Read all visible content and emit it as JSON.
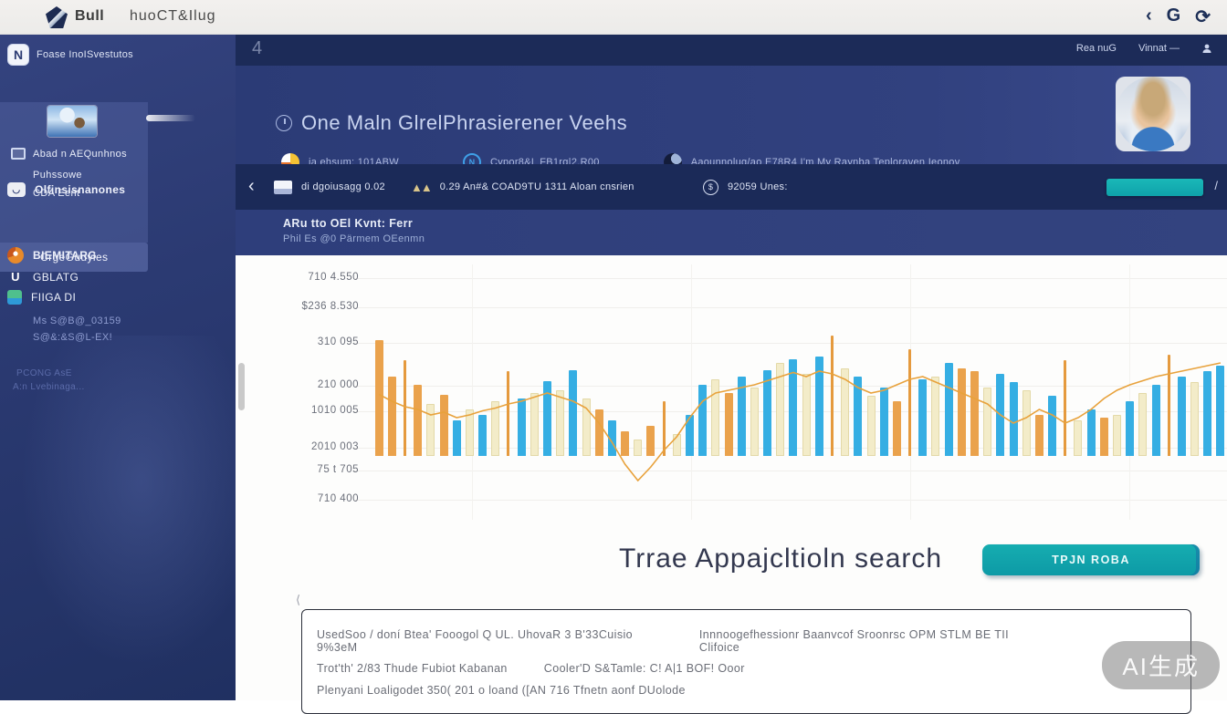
{
  "browser": {
    "logo_text": "Bull",
    "tab_text": "huoCT&Ilug",
    "back_icon": "‹",
    "search_icon": "G",
    "refresh_icon": "⟳"
  },
  "sidebar": {
    "brand": {
      "initial": "N",
      "label": "Foase InoISvestutos"
    },
    "panel_items": [
      {
        "label": "Abad n AEQunhnos"
      },
      {
        "label": "Puhssowe"
      },
      {
        "label": "CDA Eent"
      }
    ],
    "items": [
      {
        "label": "Olfinsisnanones"
      },
      {
        "label": "CrgeGuuyles"
      },
      {
        "label": "BIEMITARG"
      },
      {
        "label": "GBLATG"
      },
      {
        "label": "FIIGA DI"
      }
    ],
    "meta": [
      {
        "label": "Ms S@B@_03159"
      },
      {
        "label": "S@&:&S@L-EX!"
      }
    ],
    "footer": [
      {
        "label": "PCONG AsE"
      },
      {
        "label": "A:n Lvebinaga..."
      }
    ]
  },
  "topstrip": {
    "glyph": "4",
    "links": [
      {
        "label": "Rea nuG"
      },
      {
        "label": "Vinnat —"
      }
    ]
  },
  "header": {
    "title": "One Maln GlrelPhrasierener Veehs",
    "stats": [
      {
        "label": "ia ehsum: 101ABW"
      },
      {
        "label": "Cypor8&L FB1rg|2.R00"
      },
      {
        "label": "Aaounnolug/ao E78R4 I'm My Raynba Teploraven Ieonov"
      }
    ]
  },
  "metrics": {
    "back_icon": "‹",
    "items": [
      {
        "label": "di dgoiusagg 0.02"
      },
      {
        "label": "0.29 An#& COAD9TU 1311 Aloan cnsrien"
      },
      {
        "label": "92059 Unes:"
      }
    ],
    "action_label": "",
    "slash": "/",
    "accent_color": "#14b0b4"
  },
  "chart_header": {
    "title": "ARu tto OEl Kvnt: Ferr",
    "subtitle": "Phil Es @0 Pärmem  OEenmn"
  },
  "chart_data": {
    "type": "bar",
    "title": "",
    "xlabel": "",
    "ylabel": "",
    "legend": [],
    "grid": true,
    "y_ticks": [
      "710 4.550",
      "$236 8.530",
      "310 095",
      "210 000",
      "1010 005",
      "2010 003",
      "75 t 705",
      "710 400"
    ],
    "bar_colors": {
      "b": "#35aee3",
      "c": "#f3ecc9",
      "o": "#eaa24c",
      "s": "#e59a3e"
    },
    "line_color": "#e8a23c",
    "bars": [
      [
        "o",
        85
      ],
      [
        "o",
        58
      ],
      [
        "s",
        70
      ],
      [
        "o",
        52
      ],
      [
        "c",
        38
      ],
      [
        "o",
        45
      ],
      [
        "b",
        26
      ],
      [
        "c",
        34
      ],
      [
        "b",
        30
      ],
      [
        "c",
        40
      ],
      [
        "s",
        62
      ],
      [
        "b",
        42
      ],
      [
        "c",
        46
      ],
      [
        "b",
        55
      ],
      [
        "c",
        48
      ],
      [
        "b",
        63
      ],
      [
        "c",
        42
      ],
      [
        "o",
        34
      ],
      [
        "b",
        26
      ],
      [
        "o",
        18
      ],
      [
        "c",
        12
      ],
      [
        "o",
        22
      ],
      [
        "s",
        40
      ],
      [
        "c",
        16
      ],
      [
        "b",
        30
      ],
      [
        "b",
        52
      ],
      [
        "c",
        56
      ],
      [
        "o",
        46
      ],
      [
        "b",
        58
      ],
      [
        "c",
        50
      ],
      [
        "b",
        63
      ],
      [
        "c",
        68
      ],
      [
        "b",
        71
      ],
      [
        "c",
        60
      ],
      [
        "b",
        73
      ],
      [
        "s",
        88
      ],
      [
        "c",
        64
      ],
      [
        "b",
        58
      ],
      [
        "c",
        44
      ],
      [
        "b",
        50
      ],
      [
        "o",
        40
      ],
      [
        "s",
        78
      ],
      [
        "b",
        56
      ],
      [
        "c",
        58
      ],
      [
        "b",
        68
      ],
      [
        "o",
        64
      ],
      [
        "o",
        62
      ],
      [
        "c",
        50
      ],
      [
        "b",
        60
      ],
      [
        "b",
        54
      ],
      [
        "c",
        48
      ],
      [
        "o",
        30
      ],
      [
        "b",
        44
      ],
      [
        "s",
        70
      ],
      [
        "c",
        26
      ],
      [
        "b",
        34
      ],
      [
        "o",
        28
      ],
      [
        "c",
        30
      ],
      [
        "b",
        40
      ],
      [
        "c",
        46
      ],
      [
        "b",
        52
      ],
      [
        "s",
        74
      ],
      [
        "b",
        58
      ],
      [
        "c",
        54
      ],
      [
        "b",
        62
      ],
      [
        "b",
        66
      ]
    ],
    "line": [
      45,
      40,
      36,
      34,
      30,
      32,
      28,
      30,
      33,
      35,
      38,
      40,
      43,
      46,
      43,
      40,
      35,
      24,
      10,
      -6,
      -18,
      -8,
      4,
      14,
      28,
      40,
      46,
      48,
      50,
      52,
      55,
      58,
      61,
      58,
      62,
      60,
      56,
      50,
      46,
      48,
      52,
      56,
      58,
      54,
      50,
      46,
      42,
      38,
      30,
      24,
      28,
      34,
      30,
      24,
      28,
      34,
      42,
      48,
      52,
      55,
      58,
      60,
      62,
      64,
      66,
      68
    ]
  },
  "cta": {
    "heading": "Trrae Appajcltioln search",
    "button_label": "TPJN ROBA"
  },
  "footer_note": {
    "marker": "⟨",
    "line1a": "UsedSoo / doní Btea' Fooogol Q UL. UhovaR 3 B'33Cuisio 9%3eM",
    "line1b": "Innnoogefhessionr Baanvcof Sroonrsc OPM STLM BE TII Clifoice",
    "line2a": "Trot'th' 2/83 Thude Fubiot Kabanan",
    "line2b": "Cooler'D S&Tamle: C! A|1 BOF! Ooor",
    "line3": "Plenyani Loaligodet 350( 201 o loand  ([AN 716 Tfnetn aonf DUolode"
  },
  "watermark": "AI生成"
}
